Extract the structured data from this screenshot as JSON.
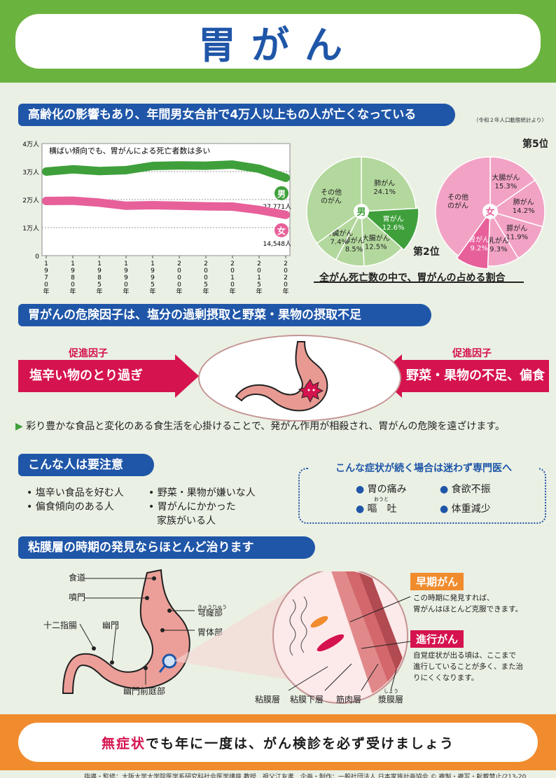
{
  "title": "胃がん",
  "section1": {
    "heading": "高齢化の影響もあり、年間男女合計で4万人以上もの人が亡くなっている",
    "source": "（令和２年人口動態統計より）",
    "chart_note": "横ばい傾向でも、胃がんによる死亡者数は多い"
  },
  "chart_data": [
    {
      "type": "line",
      "title": "",
      "subtitle": "横ばい傾向でも、胃がんによる死亡者数は多い",
      "x": [
        "1970年",
        "1980年",
        "1985年",
        "1990年",
        "1995年",
        "2000年",
        "2005年",
        "2010年",
        "2015年",
        "2020年"
      ],
      "x_tick_labels": [
        "1970年",
        "1980年",
        "1985年",
        "1990年",
        "1995年",
        "2000年",
        "2005年",
        "2010年",
        "2015年",
        "2020年"
      ],
      "y_tick_labels": [
        "0",
        "1万人",
        "2万人",
        "3万人",
        "4万人"
      ],
      "ylim": [
        0,
        40000
      ],
      "series": [
        {
          "name": "男",
          "color": "#3fa03b",
          "values": [
            30000,
            30800,
            30200,
            30500,
            32000,
            32200,
            32100,
            32500,
            31000,
            27771
          ],
          "end_label": "27,771人"
        },
        {
          "name": "女",
          "color": "#e7609a",
          "values": [
            19500,
            19600,
            18900,
            17800,
            18000,
            17800,
            17600,
            17500,
            16300,
            14548
          ],
          "end_label": "14,548人"
        }
      ]
    },
    {
      "type": "pie",
      "center_label": "男",
      "rank": "第2位",
      "labels": [
        "肺がん",
        "胃がん",
        "大腸がん",
        "膵がん",
        "肝臓がん",
        "その他のがん"
      ],
      "values": [
        24.1,
        12.6,
        12.5,
        8.5,
        7.4,
        34.9
      ],
      "value_labels": [
        "24.1%",
        "12.6%",
        "12.5%",
        "8.5%",
        "7.4%",
        ""
      ]
    },
    {
      "type": "pie",
      "center_label": "女",
      "rank": "第5位",
      "labels": [
        "大腸がん",
        "肺がん",
        "膵がん",
        "乳がん",
        "胃がん",
        "その他のがん"
      ],
      "values": [
        15.3,
        14.2,
        11.9,
        9.3,
        9.2,
        40.1
      ],
      "value_labels": [
        "15.3%",
        "14.2%",
        "11.9%",
        "9.3%",
        "9.2%",
        ""
      ]
    }
  ],
  "pie_caption": "全がん死亡数の中で、胃がんの占める割合",
  "section2": {
    "heading": "胃がんの危険因子は、塩分の過剰摂取と野菜・果物の摂取不足",
    "left_label": "促進因子",
    "left_text": "塩辛い物のとり過ぎ",
    "right_label": "促進因子",
    "right_text": "野菜・果物の不足、偏食",
    "advice": "彩り豊かな食品と変化のある食生活を心掛けることで、発がん作用が相殺され、胃がんの危険を遠ざけます。"
  },
  "section3": {
    "heading": "こんな人は要注意",
    "items_left": [
      "塩辛い食品を好む人",
      "偏食傾向のある人"
    ],
    "items_right": [
      "野菜・果物が嫌いな人",
      "胃がんにかかった",
      "家族がいる人"
    ],
    "symptoms_title": "こんな症状が続く場合は迷わず専門医へ",
    "symptoms": [
      "胃の痛み",
      "食欲不振",
      "嘔　吐",
      "体重減少"
    ],
    "ruby_outo": "おうと"
  },
  "section4": {
    "heading": "粘膜層の時期の発見ならほとんど治ります",
    "parts": [
      "食道",
      "噴門",
      "十二指腸",
      "幽門",
      "穹窿部",
      "胃体部",
      "幽門前庭部"
    ],
    "ruby_kyuryu": "きゅうりゅう",
    "layers": [
      "粘膜層",
      "粘膜下層",
      "筋肉層",
      "漿膜層"
    ],
    "ruby_sho": "しょう",
    "early_tag": "早期がん",
    "early_text": [
      "この時期に発見すれば、",
      "胃がんはほとんど克服できます。"
    ],
    "adv_tag": "進行がん",
    "adv_text": [
      "自覚症状が出る頃は、ここまで",
      "進行していることが多く、また治",
      "りにくくなります。"
    ]
  },
  "bottom": {
    "red": "無症状",
    "rest": "でも年に一度は、がん検診を必ず受けましょう"
  },
  "footer": "指導・監修：大阪大学大学院医学系研究科社会医学講座 教授　祖父江友孝　企画・制作：一般社団法人 日本家族計画協会 © 複製・複写・転載禁止/213-20",
  "colors": {
    "blue": "#1f56a8",
    "green": "#3fa03b",
    "pink": "#e7609a",
    "red": "#d5134e",
    "orange": "#f08c2d"
  }
}
